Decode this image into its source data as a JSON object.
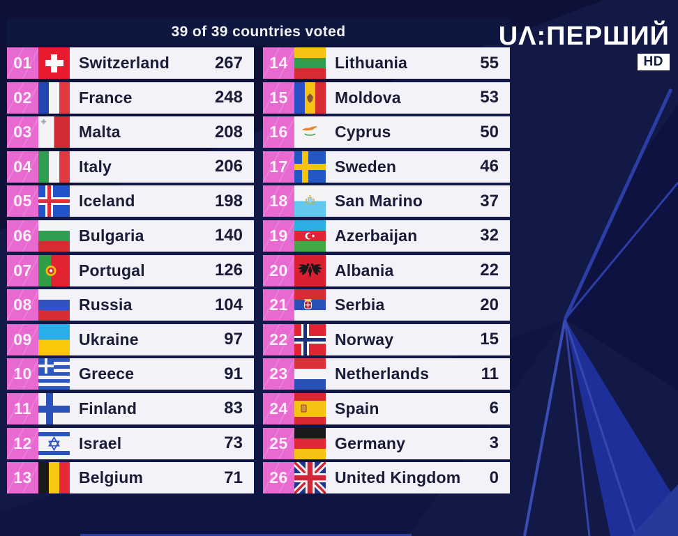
{
  "header": {
    "votes_status": "39 of 39 countries voted"
  },
  "branding": {
    "channel_logo": "UΛ:ПЕРШИЙ",
    "hd_badge": "HD"
  },
  "colors": {
    "background_navy": "#121947",
    "header_bar": "#0e1740",
    "badge_pink": "#e869cf",
    "row_background": "#f2f2f8",
    "text_dark": "#1a1b36",
    "ray_blue": "#2c3ea6"
  },
  "scoreboard": {
    "left_column": [
      {
        "rank": "01",
        "country": "Switzerland",
        "points": 267,
        "flag": "switzerland"
      },
      {
        "rank": "02",
        "country": "France",
        "points": 248,
        "flag": "france"
      },
      {
        "rank": "03",
        "country": "Malta",
        "points": 208,
        "flag": "malta"
      },
      {
        "rank": "04",
        "country": "Italy",
        "points": 206,
        "flag": "italy"
      },
      {
        "rank": "05",
        "country": "Iceland",
        "points": 198,
        "flag": "iceland"
      },
      {
        "rank": "06",
        "country": "Bulgaria",
        "points": 140,
        "flag": "bulgaria"
      },
      {
        "rank": "07",
        "country": "Portugal",
        "points": 126,
        "flag": "portugal"
      },
      {
        "rank": "08",
        "country": "Russia",
        "points": 104,
        "flag": "russia"
      },
      {
        "rank": "09",
        "country": "Ukraine",
        "points": 97,
        "flag": "ukraine"
      },
      {
        "rank": "10",
        "country": "Greece",
        "points": 91,
        "flag": "greece"
      },
      {
        "rank": "11",
        "country": "Finland",
        "points": 83,
        "flag": "finland"
      },
      {
        "rank": "12",
        "country": "Israel",
        "points": 73,
        "flag": "israel"
      },
      {
        "rank": "13",
        "country": "Belgium",
        "points": 71,
        "flag": "belgium"
      }
    ],
    "right_column": [
      {
        "rank": "14",
        "country": "Lithuania",
        "points": 55,
        "flag": "lithuania"
      },
      {
        "rank": "15",
        "country": "Moldova",
        "points": 53,
        "flag": "moldova"
      },
      {
        "rank": "16",
        "country": "Cyprus",
        "points": 50,
        "flag": "cyprus"
      },
      {
        "rank": "17",
        "country": "Sweden",
        "points": 46,
        "flag": "sweden"
      },
      {
        "rank": "18",
        "country": "San Marino",
        "points": 37,
        "flag": "san-marino"
      },
      {
        "rank": "19",
        "country": "Azerbaijan",
        "points": 32,
        "flag": "azerbaijan"
      },
      {
        "rank": "20",
        "country": "Albania",
        "points": 22,
        "flag": "albania"
      },
      {
        "rank": "21",
        "country": "Serbia",
        "points": 20,
        "flag": "serbia"
      },
      {
        "rank": "22",
        "country": "Norway",
        "points": 15,
        "flag": "norway"
      },
      {
        "rank": "23",
        "country": "Netherlands",
        "points": 11,
        "flag": "netherlands"
      },
      {
        "rank": "24",
        "country": "Spain",
        "points": 6,
        "flag": "spain"
      },
      {
        "rank": "25",
        "country": "Germany",
        "points": 3,
        "flag": "germany"
      },
      {
        "rank": "26",
        "country": "United Kingdom",
        "points": 0,
        "flag": "united-kingdom"
      }
    ]
  }
}
